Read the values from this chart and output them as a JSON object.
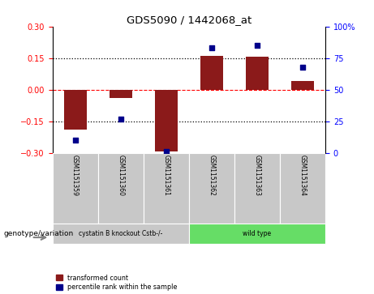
{
  "title": "GDS5090 / 1442068_at",
  "samples": [
    "GSM1151359",
    "GSM1151360",
    "GSM1151361",
    "GSM1151362",
    "GSM1151363",
    "GSM1151364"
  ],
  "bar_values": [
    -0.19,
    -0.04,
    -0.295,
    0.16,
    0.155,
    0.04
  ],
  "percentile_values": [
    10,
    27,
    1,
    83,
    85,
    68
  ],
  "bar_color": "#8B1A1A",
  "scatter_color": "#00008B",
  "ylim_left": [
    -0.3,
    0.3
  ],
  "ylim_right": [
    0,
    100
  ],
  "yticks_left": [
    -0.3,
    -0.15,
    0,
    0.15,
    0.3
  ],
  "yticks_right": [
    0,
    25,
    50,
    75,
    100
  ],
  "ytick_right_labels": [
    "0",
    "25",
    "50",
    "75",
    "100%"
  ],
  "hline_dotted_vals": [
    0.15,
    -0.15
  ],
  "hline_zero": 0,
  "background_color": "#ffffff",
  "sample_bg_color": "#c8c8c8",
  "group1_color": "#c8c8c8",
  "group2_color": "#66dd66",
  "legend_label_bar": "transformed count",
  "legend_label_scatter": "percentile rank within the sample",
  "genotype_label": "genotype/variation",
  "group1_label": "cystatin B knockout Cstb-/-",
  "group2_label": "wild type",
  "bar_width": 0.5
}
